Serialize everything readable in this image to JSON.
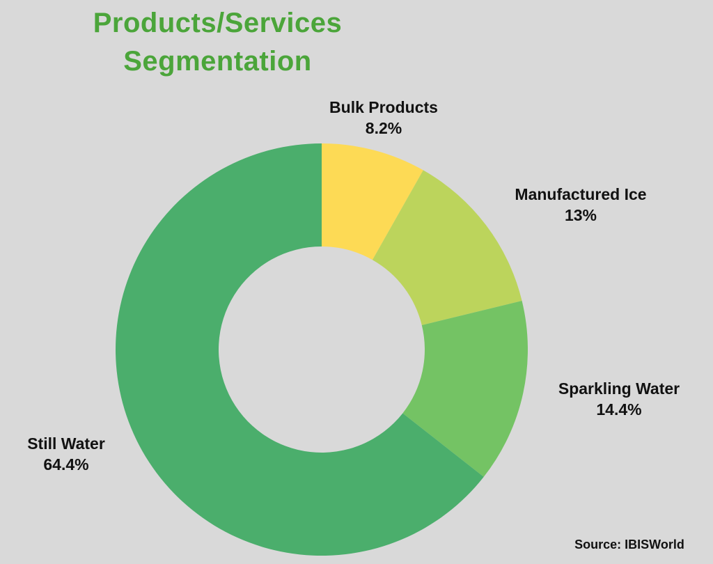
{
  "background_color": "#d9d9d9",
  "title": {
    "line1": "Products/Services",
    "line2": "Segmentation",
    "color": "#4ba53a"
  },
  "source_caption": "Source: IBISWorld",
  "chart_data": {
    "type": "pie",
    "subtype": "donut",
    "title": "Products/Services Segmentation",
    "legend_position": "none",
    "labels_on_chart": true,
    "start_angle_deg": 0,
    "direction": "clockwise",
    "inner_radius_ratio": 0.5,
    "hole_color": "#d9d9d9",
    "segments": [
      {
        "label": "Bulk Products",
        "pct_label": "8.2%",
        "value": 8.2,
        "color": "#fdda55"
      },
      {
        "label": "Manufactured Ice",
        "pct_label": "13%",
        "value": 13,
        "color": "#bcd45c"
      },
      {
        "label": "Sparkling Water",
        "pct_label": "14.4%",
        "value": 14.4,
        "color": "#74c364"
      },
      {
        "label": "Still Water",
        "pct_label": "64.4%",
        "value": 64.4,
        "color": "#4bae6c"
      }
    ]
  }
}
